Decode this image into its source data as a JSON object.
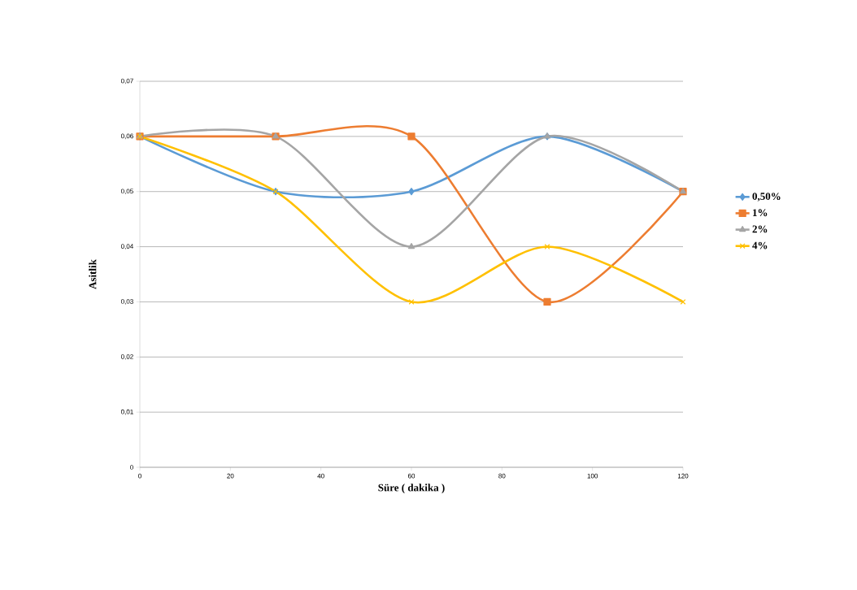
{
  "chart_data": {
    "type": "line",
    "xlabel": "Süre ( dakika )",
    "ylabel": "Asitlik",
    "x": [
      0,
      30,
      60,
      90,
      120
    ],
    "series": [
      {
        "name": "0,50%",
        "color": "#5b9bd5",
        "marker": "diamond",
        "values": [
          0.06,
          0.05,
          0.05,
          0.06,
          0.05
        ]
      },
      {
        "name": "1%",
        "color": "#ed7d31",
        "marker": "square",
        "values": [
          0.06,
          0.06,
          0.06,
          0.03,
          0.05
        ]
      },
      {
        "name": "2%",
        "color": "#a5a5a5",
        "marker": "triangle",
        "values": [
          0.06,
          0.06,
          0.04,
          0.06,
          0.05
        ]
      },
      {
        "name": "4%",
        "color": "#ffc000",
        "marker": "cross",
        "values": [
          0.06,
          0.05,
          0.03,
          0.04,
          0.03
        ]
      }
    ],
    "xlim": [
      0,
      120
    ],
    "xticks": [
      0,
      20,
      40,
      60,
      80,
      100,
      120
    ],
    "ylim": [
      0,
      0.07
    ],
    "yticks": [
      {
        "value": 0,
        "label": "0"
      },
      {
        "value": 0.01,
        "label": "0,01"
      },
      {
        "value": 0.02,
        "label": "0,02"
      },
      {
        "value": 0.03,
        "label": "0,03"
      },
      {
        "value": 0.04,
        "label": "0,04"
      },
      {
        "value": 0.05,
        "label": "0,05"
      },
      {
        "value": 0.06,
        "label": "0,06"
      },
      {
        "value": 0.07,
        "label": "0,07"
      }
    ],
    "grid": "y",
    "legend": "right",
    "line_style": "solid"
  }
}
